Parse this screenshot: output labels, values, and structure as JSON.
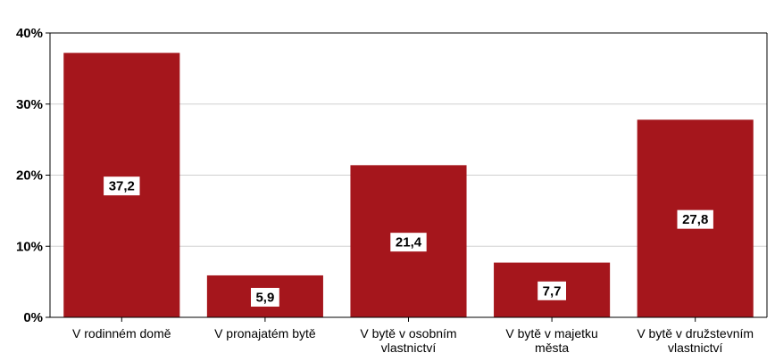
{
  "chart_data": {
    "type": "bar",
    "categories": [
      [
        "V rodinném domě"
      ],
      [
        "V pronajatém bytě"
      ],
      [
        "V bytě v osobním",
        "vlastnictví"
      ],
      [
        "V bytě v majetku",
        "města"
      ],
      [
        "V bytě v družstevním",
        "vlastnictví"
      ]
    ],
    "values": [
      37.2,
      5.9,
      21.4,
      7.7,
      27.8
    ],
    "data_labels": [
      "37,2",
      "5,9",
      "21,4",
      "7,7",
      "27,8"
    ],
    "ylim": [
      0,
      40
    ],
    "yticks": [
      0,
      10,
      20,
      30,
      40
    ],
    "ytick_labels": [
      "0%",
      "10%",
      "20%",
      "30%",
      "40%"
    ],
    "grid": true,
    "bar_color": "#a5161c",
    "grid_color": "#d0d0d0"
  }
}
